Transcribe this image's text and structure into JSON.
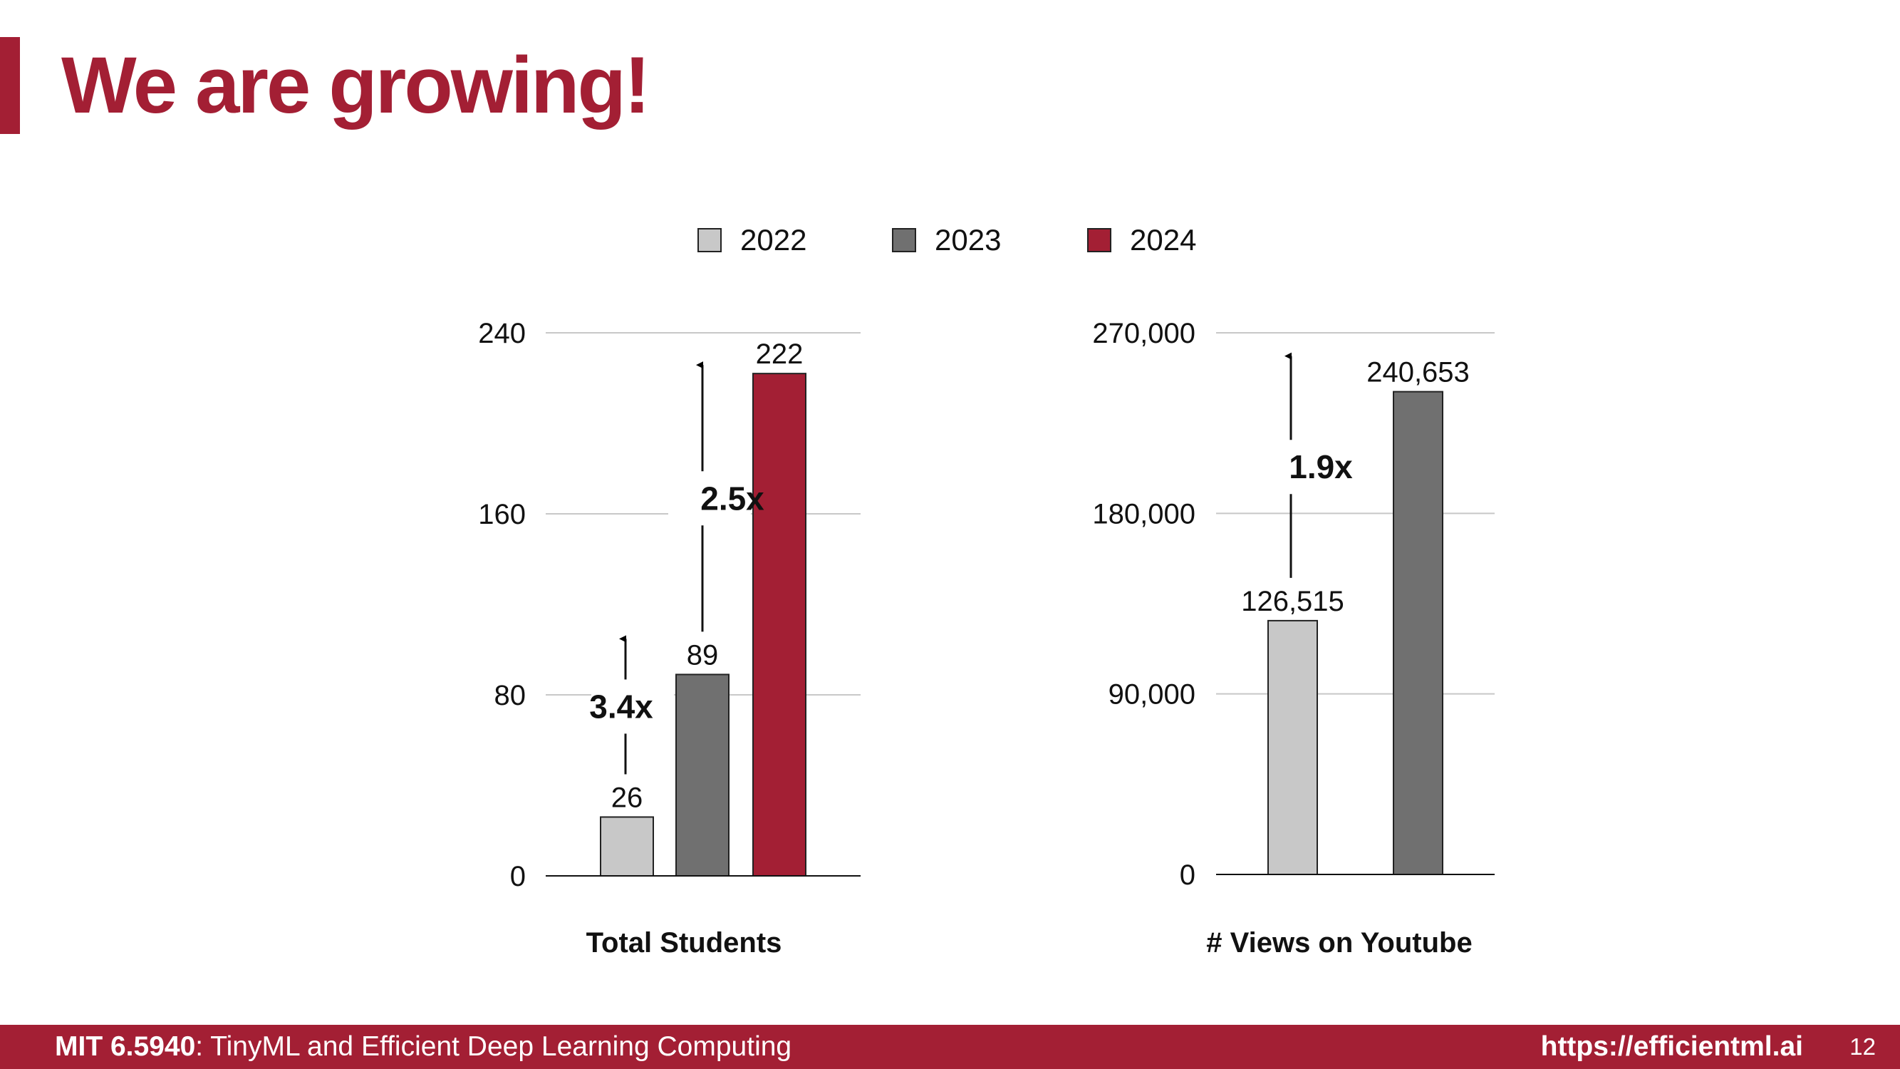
{
  "slide": {
    "title": "We are growing!",
    "page_number": "12"
  },
  "footer": {
    "course_code": "MIT 6.5940",
    "course_sep": ": ",
    "course_name": "TinyML and Efficient Deep Learning Computing",
    "url": "https://efficientml.ai"
  },
  "colors": {
    "accent": "#a31f34",
    "y2022": "#c8c8c8",
    "y2023": "#707070",
    "y2024": "#a31f34"
  },
  "legend": [
    {
      "label": "2022",
      "color": "#c8c8c8"
    },
    {
      "label": "2023",
      "color": "#707070"
    },
    {
      "label": "2024",
      "color": "#a31f34"
    }
  ],
  "chart_data": [
    {
      "type": "bar",
      "title": "Total Students",
      "categories": [
        "2022",
        "2023",
        "2024"
      ],
      "values": [
        26,
        89,
        222
      ],
      "value_labels": [
        "26",
        "89",
        "222"
      ],
      "colors": [
        "#c8c8c8",
        "#707070",
        "#a31f34"
      ],
      "ylim": [
        0,
        240
      ],
      "yticks": [
        0,
        80,
        160,
        240
      ],
      "ytick_labels": [
        "0",
        "80",
        "160",
        "240"
      ],
      "grid": true,
      "legend": "top",
      "annotations": [
        {
          "text": "3.4x",
          "from": 26,
          "to": 89
        },
        {
          "text": "2.5x",
          "from": 89,
          "to": 222
        }
      ]
    },
    {
      "type": "bar",
      "title": "# Views on Youtube",
      "categories": [
        "2022",
        "2023"
      ],
      "values": [
        126515,
        240653
      ],
      "value_labels": [
        "126,515",
        "240,653"
      ],
      "colors": [
        "#c8c8c8",
        "#707070"
      ],
      "ylim": [
        0,
        270000
      ],
      "yticks": [
        0,
        90000,
        180000,
        270000
      ],
      "ytick_labels": [
        "0",
        "90,000",
        "180,000",
        "270,000"
      ],
      "grid": true,
      "legend": "top",
      "annotations": [
        {
          "text": "1.9x",
          "from": 126515,
          "to": 240653
        }
      ]
    }
  ]
}
